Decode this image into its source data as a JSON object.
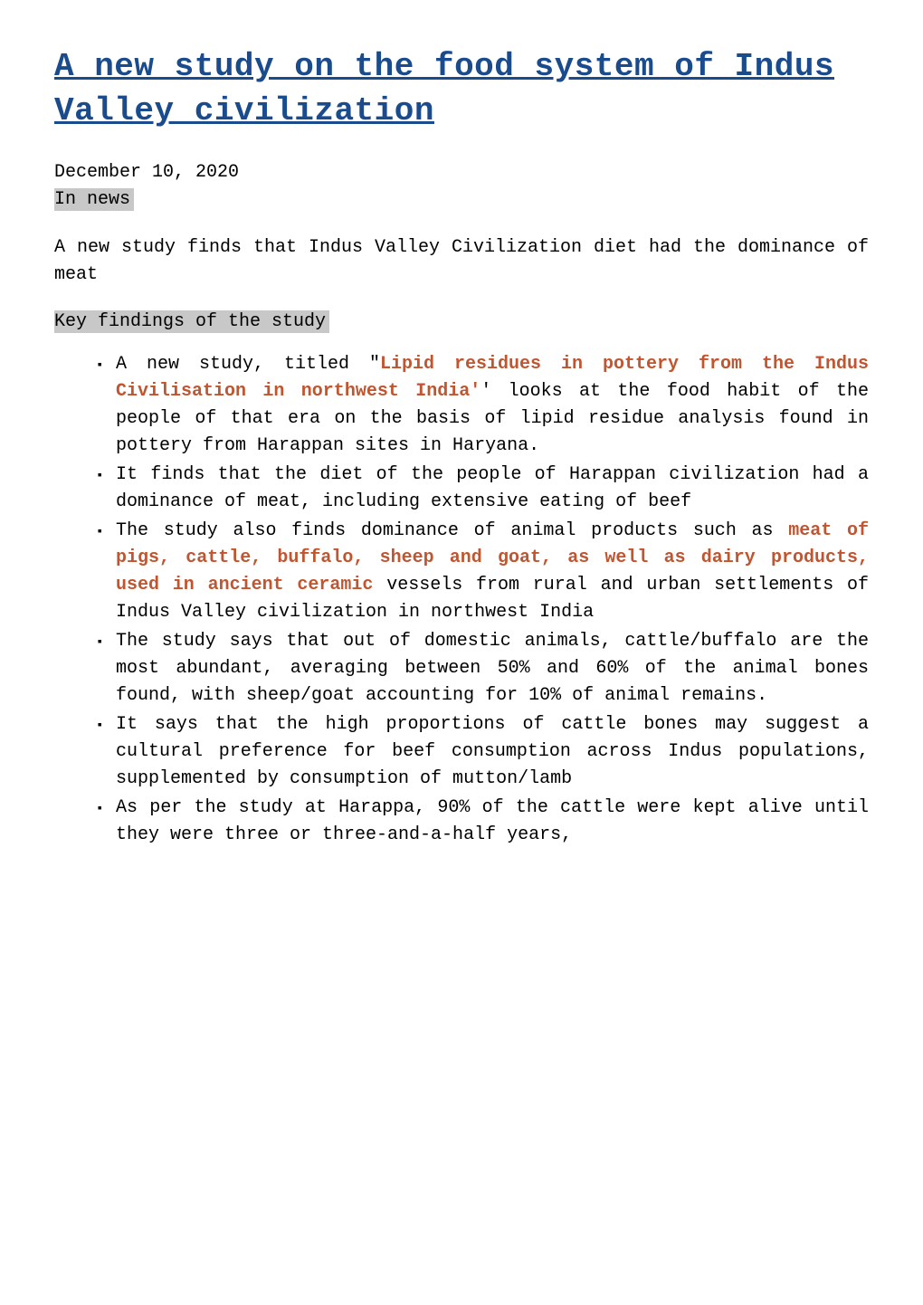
{
  "document": {
    "title": "A new study on the food system of Indus Valley civilization",
    "date": "December 10, 2020",
    "title_color": "#1a4b8c",
    "title_fontsize": 36,
    "body_fontsize": 20,
    "highlight_color": "#c05530",
    "heading_bg": "#c8c8c8",
    "background_color": "#ffffff",
    "font_family": "Courier New, monospace",
    "sections": [
      {
        "heading": "In news ",
        "intro": "A new study finds that Indus Valley Civilization diet had the dominance of meat"
      },
      {
        "heading": "Key findings of the study",
        "bullets": [
          {
            "pre": "A new study, titled \"",
            "hl": "Lipid residues in pottery from the Indus Civilisation in northwest India'",
            "post": "' looks at the food habit of the people of that era on the basis of lipid residue analysis found in pottery from Harappan sites in Haryana."
          },
          {
            "pre": "It finds that the diet of the people of Harappan civilization had a dominance of meat, including extensive eating of beef",
            "hl": "",
            "post": ""
          },
          {
            "pre": "The study also finds dominance of animal products such as ",
            "hl": "meat of pigs, cattle, buffalo, sheep and goat, as well as dairy products, used in ancient ceramic",
            "post": " vessels from rural and urban settlements of Indus Valley civilization in northwest India"
          },
          {
            "pre": "The study says that out of domestic animals, cattle/buffalo are the most abundant, averaging between 50% and 60% of the animal bones found, with sheep/goat accounting for 10% of animal remains.",
            "hl": "",
            "post": ""
          },
          {
            "pre": "It says that the high proportions of cattle bones may suggest a cultural preference for beef consumption across Indus populations, supplemented by consumption of mutton/lamb",
            "hl": "",
            "post": ""
          },
          {
            "pre": "As per the study at Harappa, 90% of the cattle were kept alive until they were three or three-and-a-half years,",
            "hl": "",
            "post": ""
          }
        ]
      }
    ]
  }
}
